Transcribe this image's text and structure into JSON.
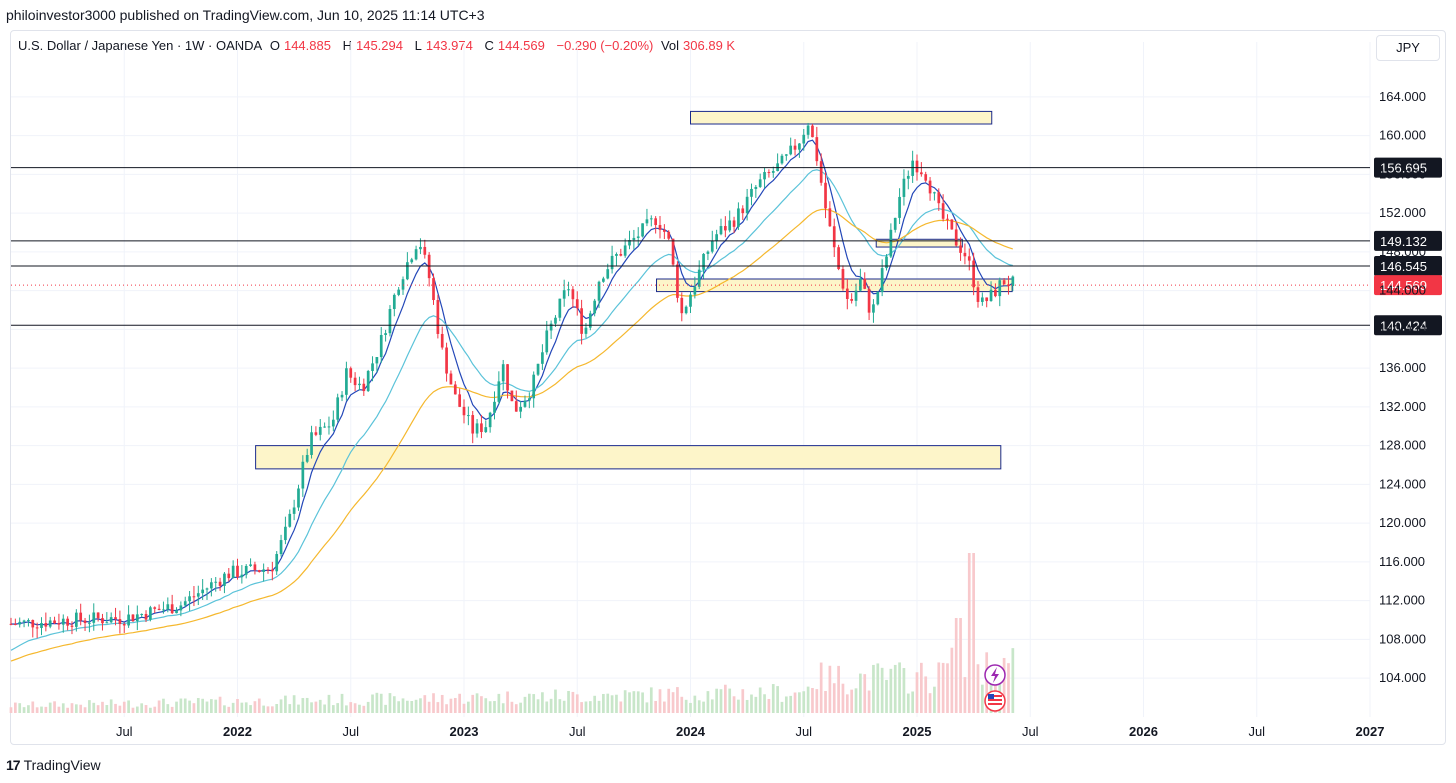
{
  "header": {
    "credit": "philoinvestor3000 published on TradingView.com, Jun 10, 2025 11:14 UTC+3"
  },
  "legend": {
    "symbol": "U.S. Dollar / Japanese Yen · 1W · OANDA",
    "o_label": "O",
    "o_value": "144.885",
    "h_label": "H",
    "h_value": "145.294",
    "l_label": "L",
    "l_value": "143.974",
    "c_label": "C",
    "c_value": "144.569",
    "change": "−0.290 (−0.20%)",
    "vol_label": "Vol",
    "vol_value": "306.89 K"
  },
  "currency_button": "JPY",
  "footer": {
    "logo_mark": "17",
    "brand": "TradingView"
  },
  "colors": {
    "up": "#22ab94",
    "down": "#f23645",
    "vol_up": "#c8e6c9",
    "vol_down": "#f8c9cc",
    "ema_fast": "#2347b8",
    "ema_mid": "#5bc3d9",
    "ema_slow": "#f5b82e",
    "zone_fill": "#fdf5c9",
    "zone_border": "#1a2a8c"
  },
  "chart_data": {
    "type": "candlestick",
    "title": "U.S. Dollar / Japanese Yen · 1W · OANDA",
    "ylim": [
      100.4,
      167.6
    ],
    "y_ticks": [
      "164.000",
      "160.000",
      "156.000",
      "152.000",
      "148.000",
      "144.000",
      "140.000",
      "136.000",
      "132.000",
      "128.000",
      "124.000",
      "120.000",
      "116.000",
      "112.000",
      "108.000",
      "104.000"
    ],
    "y_tick_values": [
      164,
      160,
      156,
      152,
      148,
      144,
      140,
      136,
      132,
      128,
      124,
      120,
      116,
      112,
      108,
      104
    ],
    "x_ticks": [
      {
        "label": "Jul",
        "t": 2021.5,
        "bold": false
      },
      {
        "label": "2022",
        "t": 2022.0,
        "bold": true
      },
      {
        "label": "Jul",
        "t": 2022.5,
        "bold": false
      },
      {
        "label": "2023",
        "t": 2023.0,
        "bold": true
      },
      {
        "label": "Jul",
        "t": 2023.5,
        "bold": false
      },
      {
        "label": "2024",
        "t": 2024.0,
        "bold": true
      },
      {
        "label": "Jul",
        "t": 2024.5,
        "bold": false
      },
      {
        "label": "2025",
        "t": 2025.0,
        "bold": true
      },
      {
        "label": "Jul",
        "t": 2025.5,
        "bold": false
      },
      {
        "label": "2026",
        "t": 2026.0,
        "bold": true
      },
      {
        "label": "Jul",
        "t": 2026.5,
        "bold": false
      },
      {
        "label": "2027",
        "t": 2027.0,
        "bold": true
      }
    ],
    "time_range": [
      2021.0,
      2027.0
    ],
    "horizontal_levels": [
      {
        "price": 156.695,
        "label": "156.695"
      },
      {
        "price": 149.132,
        "label": "149.132"
      },
      {
        "price": 146.545,
        "label": "146.545"
      },
      {
        "price": 140.424,
        "label": "140.424"
      }
    ],
    "current_price": {
      "price": 144.569,
      "label": "144.569"
    },
    "zones": [
      {
        "t0": 2024.0,
        "t1": 2025.33,
        "top": 162.5,
        "bottom": 161.2
      },
      {
        "t0": 2022.08,
        "t1": 2025.37,
        "top": 128.0,
        "bottom": 125.6
      },
      {
        "t0": 2023.85,
        "t1": 2025.42,
        "top": 145.2,
        "bottom": 143.9
      },
      {
        "t0": 2024.82,
        "t1": 2025.2,
        "top": 149.3,
        "bottom": 148.5
      }
    ],
    "key_points": [
      [
        2021.0,
        109.6
      ],
      [
        2021.25,
        110.0
      ],
      [
        2021.5,
        110.2
      ],
      [
        2021.75,
        111.6
      ],
      [
        2021.96,
        114.8
      ],
      [
        2022.15,
        115.4
      ],
      [
        2022.22,
        119.5
      ],
      [
        2022.32,
        128.5
      ],
      [
        2022.42,
        130.5
      ],
      [
        2022.48,
        135.5
      ],
      [
        2022.55,
        134.0
      ],
      [
        2022.63,
        138.5
      ],
      [
        2022.71,
        144.8
      ],
      [
        2022.8,
        149.5
      ],
      [
        2022.85,
        145.0
      ],
      [
        2022.9,
        138.0
      ],
      [
        2022.96,
        133.0
      ],
      [
        2023.04,
        129.5
      ],
      [
        2023.1,
        130.2
      ],
      [
        2023.17,
        136.5
      ],
      [
        2023.22,
        131.5
      ],
      [
        2023.3,
        134.0
      ],
      [
        2023.37,
        139.5
      ],
      [
        2023.46,
        144.5
      ],
      [
        2023.53,
        139.5
      ],
      [
        2023.6,
        145.5
      ],
      [
        2023.67,
        147.5
      ],
      [
        2023.78,
        150.0
      ],
      [
        2023.85,
        151.5
      ],
      [
        2023.9,
        149.5
      ],
      [
        2023.96,
        141.5
      ],
      [
        2024.04,
        146.0
      ],
      [
        2024.1,
        149.5
      ],
      [
        2024.2,
        151.5
      ],
      [
        2024.3,
        155.0
      ],
      [
        2024.42,
        157.5
      ],
      [
        2024.48,
        159.5
      ],
      [
        2024.52,
        161.5
      ],
      [
        2024.56,
        157.5
      ],
      [
        2024.6,
        152.0
      ],
      [
        2024.65,
        146.5
      ],
      [
        2024.7,
        142.5
      ],
      [
        2024.75,
        145.0
      ],
      [
        2024.8,
        141.5
      ],
      [
        2024.86,
        147.0
      ],
      [
        2024.92,
        153.5
      ],
      [
        2024.98,
        157.5
      ],
      [
        2025.04,
        156.0
      ],
      [
        2025.1,
        152.0
      ],
      [
        2025.16,
        149.5
      ],
      [
        2025.22,
        147.5
      ],
      [
        2025.28,
        142.5
      ],
      [
        2025.33,
        143.5
      ],
      [
        2025.38,
        145.0
      ],
      [
        2025.44,
        144.6
      ]
    ],
    "series": [
      {
        "name": "EMA fast",
        "color": "#2347b8"
      },
      {
        "name": "EMA mid",
        "color": "#5bc3d9"
      },
      {
        "name": "EMA slow",
        "color": "#f5b82e"
      },
      {
        "name": "Volume",
        "color": "#c8e6c9"
      }
    ]
  }
}
